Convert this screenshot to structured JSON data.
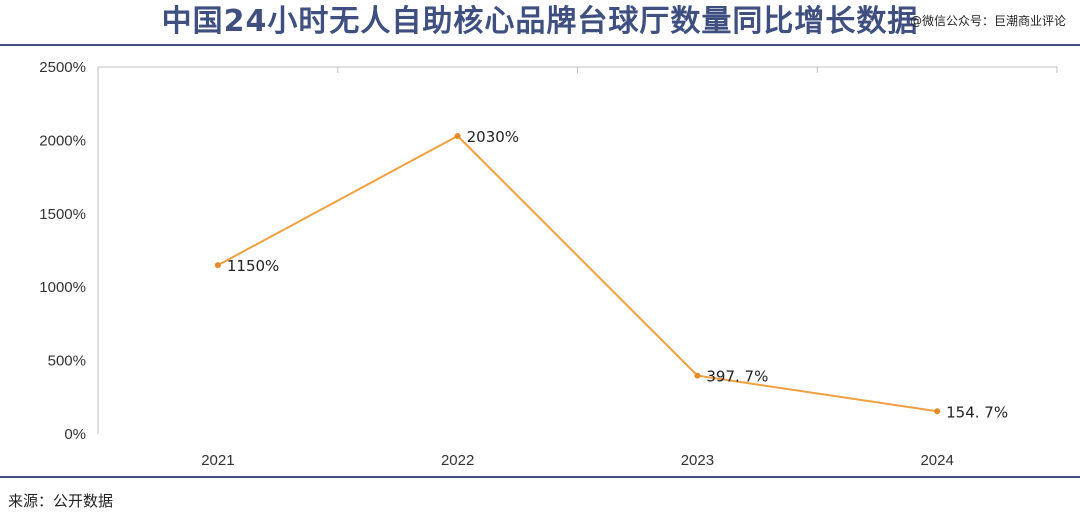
{
  "header": {
    "title": "中国24小时无人自助核心品牌台球厅数量同比增长数据",
    "watermark": "@微信公众号：巨潮商业评论"
  },
  "footer": {
    "source": "来源：公开数据"
  },
  "colors": {
    "title": "#3f4f7f",
    "rule": "#3f4f7f",
    "line": "#f0a040",
    "point": "#e88a2a",
    "axis": "#bfbfbf"
  },
  "chart_data": {
    "type": "line",
    "categories": [
      "2021",
      "2022",
      "2023",
      "2024"
    ],
    "values": [
      1150,
      2030,
      397.7,
      154.7
    ],
    "data_labels": [
      "1150%",
      "2030%",
      "397. 7%",
      "154. 7%"
    ],
    "y_ticks": [
      "0%",
      "500%",
      "1000%",
      "1500%",
      "2000%",
      "2500%"
    ],
    "ylim": [
      0,
      2500
    ],
    "xlabel": "",
    "ylabel": "",
    "grid": false,
    "legend": "none"
  }
}
